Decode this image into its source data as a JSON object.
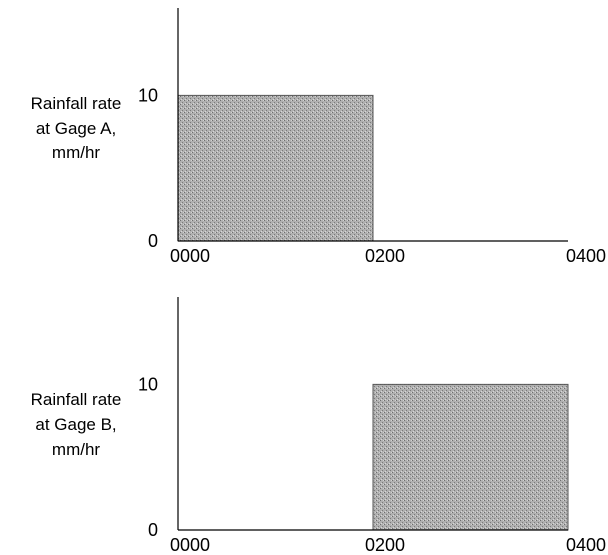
{
  "chart_data": [
    {
      "type": "bar",
      "ylabel_lines": [
        "Rainfall rate",
        "at Gage A,",
        "mm/hr"
      ],
      "x_ticks": [
        "0000",
        "0200",
        "0400"
      ],
      "x_tick_values": [
        0,
        2,
        4
      ],
      "y_ticks": [
        "0",
        "10"
      ],
      "y_tick_values": [
        0,
        10
      ],
      "xlim": [
        0,
        4
      ],
      "ylim": [
        0,
        16
      ],
      "bars": [
        {
          "x_start": 0,
          "x_end": 2,
          "value": 10
        }
      ]
    },
    {
      "type": "bar",
      "ylabel_lines": [
        "Rainfall rate",
        "at Gage B,",
        "mm/hr"
      ],
      "x_ticks": [
        "0000",
        "0200",
        "0400"
      ],
      "x_tick_values": [
        0,
        2,
        4
      ],
      "y_ticks": [
        "0",
        "10"
      ],
      "y_tick_values": [
        0,
        10
      ],
      "xlim": [
        0,
        4
      ],
      "ylim": [
        0,
        16
      ],
      "bars": [
        {
          "x_start": 2,
          "x_end": 4,
          "value": 10
        }
      ]
    }
  ],
  "colors": {
    "bar_fill": "#a8a8a8",
    "axis": "#000000"
  }
}
